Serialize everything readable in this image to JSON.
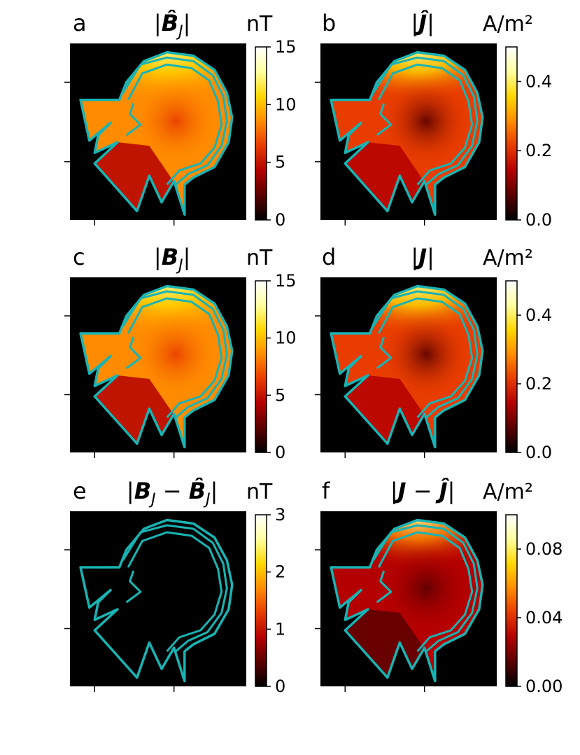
{
  "colors": {
    "colormap": [
      "#000000",
      "#5a0000",
      "#b40000",
      "#e83c00",
      "#ff8c00",
      "#ffd800",
      "#ffffa0",
      "#ffffff"
    ],
    "outline": "#1ab3b3",
    "background": "#000000"
  },
  "chart_data": [
    {
      "type": "heatmap",
      "panel": "a",
      "title": "|B̂_J|",
      "title_parts": {
        "prefix": "|",
        "symbol": "B̂",
        "subscript": "J",
        "suffix": "|"
      },
      "colorbar_unit": "nT",
      "colorbar_range": [
        0,
        15
      ],
      "colorbar_ticks": [
        "15",
        "10",
        "5",
        "0"
      ],
      "colorbar_tick_values": [
        15,
        10,
        5,
        0
      ],
      "fields": {
        "overall_level": 0.55,
        "center_dip": 0.12,
        "top_boost": 0.9
      }
    },
    {
      "type": "heatmap",
      "panel": "b",
      "title": "|Ĵ|",
      "title_parts": {
        "prefix": "|",
        "symbol": "Ĵ",
        "subscript": "",
        "suffix": "|"
      },
      "colorbar_unit": "A/m²",
      "colorbar_range": [
        0.0,
        0.5
      ],
      "colorbar_ticks": [
        "0.4",
        "0.2",
        "0.0"
      ],
      "colorbar_tick_values": [
        0.4,
        0.2,
        0.0
      ],
      "fields": {
        "overall_level": 0.45,
        "center_dip": 0.5,
        "top_boost": 0.9
      }
    },
    {
      "type": "heatmap",
      "panel": "c",
      "title": "|B_J|",
      "title_parts": {
        "prefix": "|",
        "symbol": "B",
        "subscript": "J",
        "suffix": "|"
      },
      "colorbar_unit": "nT",
      "colorbar_range": [
        0,
        15
      ],
      "colorbar_ticks": [
        "15",
        "10",
        "5",
        "0"
      ],
      "colorbar_tick_values": [
        15,
        10,
        5,
        0
      ],
      "fields": {
        "overall_level": 0.55,
        "center_dip": 0.12,
        "top_boost": 0.9
      }
    },
    {
      "type": "heatmap",
      "panel": "d",
      "title": "|J|",
      "title_parts": {
        "prefix": "|",
        "symbol": "J",
        "subscript": "",
        "suffix": "|"
      },
      "colorbar_unit": "A/m²",
      "colorbar_range": [
        0.0,
        0.5
      ],
      "colorbar_ticks": [
        "0.4",
        "0.2",
        "0.0"
      ],
      "colorbar_tick_values": [
        0.4,
        0.2,
        0.0
      ],
      "fields": {
        "overall_level": 0.45,
        "center_dip": 0.5,
        "top_boost": 0.9
      }
    },
    {
      "type": "heatmap",
      "panel": "e",
      "title": "|B_J − B̂_J|",
      "title_parts": {
        "prefix": "|",
        "symbol": "B",
        "subscript": "J",
        "mid": " − ",
        "symbol2": "B̂",
        "subscript2": "J",
        "suffix": "|"
      },
      "colorbar_unit": "nT",
      "colorbar_range": [
        0,
        3
      ],
      "colorbar_ticks": [
        "3",
        "2",
        "1",
        "0"
      ],
      "colorbar_tick_values": [
        3,
        2,
        1,
        0
      ],
      "fields": {
        "overall_level": 0.05,
        "center_dip": 0,
        "top_boost": 0.05
      }
    },
    {
      "type": "heatmap",
      "panel": "f",
      "title": "|J − Ĵ|",
      "title_parts": {
        "prefix": "|",
        "symbol": "J",
        "subscript": "",
        "mid": " − ",
        "symbol2": "Ĵ",
        "subscript2": "",
        "suffix": "|"
      },
      "colorbar_unit": "A/m²",
      "colorbar_range": [
        0.0,
        0.1
      ],
      "colorbar_ticks": [
        "0.08",
        "0.04",
        "0.00"
      ],
      "colorbar_tick_values": [
        0.08,
        0.04,
        0.0
      ],
      "fields": {
        "overall_level": 0.3,
        "center_dip": 0.3,
        "top_boost": 0.8
      }
    }
  ]
}
